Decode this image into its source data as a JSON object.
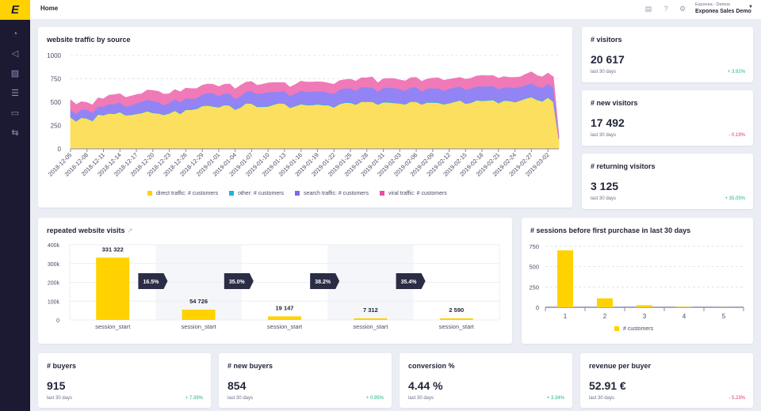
{
  "app": {
    "logo": "E",
    "breadcrumb": "Home",
    "org": "Exponea - Demos",
    "project": "Exponea Sales Demo"
  },
  "sidebar": {
    "items": [
      {
        "icon": "dashboard-icon"
      },
      {
        "icon": "megaphone-icon"
      },
      {
        "icon": "analytics-icon"
      },
      {
        "icon": "database-icon"
      },
      {
        "icon": "folder-icon"
      },
      {
        "icon": "settings-sliders-icon"
      }
    ]
  },
  "topbar": {
    "icons": [
      "chat-icon",
      "help-icon",
      "gear-icon"
    ]
  },
  "colors": {
    "yellow": "#ffd200",
    "direct": "#fcdf5f",
    "other": "#1bb6d8",
    "search": "#9284f5",
    "viral": "#f07ab7",
    "positive": "#1fb87a",
    "negative": "#e0336b"
  },
  "traffic": {
    "title": "website traffic by source",
    "chart_data": {
      "type": "area",
      "stacked": true,
      "grid": true,
      "ylim": [
        0,
        1000
      ],
      "yticks": [
        0,
        250,
        500,
        750,
        1000
      ],
      "x_start": "2018-12-05",
      "xtick_labels": [
        "2018-12-05",
        "2018-12-08",
        "2018-12-11",
        "2018-12-14",
        "2018-12-17",
        "2018-12-20",
        "2018-12-23",
        "2018-12-26",
        "2018-12-29",
        "2019-01-01",
        "2019-01-04",
        "2019-01-07",
        "2019-01-10",
        "2019-01-13",
        "2019-01-16",
        "2019-01-19",
        "2019-01-22",
        "2019-01-25",
        "2019-01-28",
        "2019-01-31",
        "2019-02-03",
        "2019-02-06",
        "2019-02-09",
        "2019-02-12",
        "2019-02-15",
        "2019-02-18",
        "2019-02-21",
        "2019-02-24",
        "2019-02-27",
        "2019-03-02"
      ],
      "series": [
        {
          "name": "direct traffic: # customers",
          "color": "#fcdf5f",
          "values": [
            340,
            295,
            335,
            325,
            300,
            370,
            360,
            380,
            375,
            395,
            360,
            365,
            375,
            385,
            405,
            385,
            380,
            365,
            380,
            410,
            375,
            420,
            420,
            430,
            460,
            465,
            455,
            445,
            470,
            465,
            420,
            445,
            490,
            485,
            450,
            452,
            455,
            475,
            490,
            485,
            440,
            460,
            480,
            470,
            470,
            478,
            470,
            468,
            445,
            480,
            495,
            495,
            475,
            505,
            505,
            505,
            475,
            500,
            498,
            492,
            487,
            477,
            507,
            505,
            477,
            497,
            497,
            495,
            478,
            490,
            505,
            520,
            485,
            495,
            520,
            515,
            518,
            525,
            490,
            518,
            515,
            500,
            520,
            540,
            555,
            525,
            510,
            550,
            505,
            110
          ]
        },
        {
          "name": "other: # customers",
          "color": "#1bb6d8",
          "values": [
            5,
            5,
            5,
            5,
            5,
            5,
            5,
            5,
            5,
            5,
            5,
            5,
            5,
            5,
            5,
            5,
            5,
            5,
            5,
            5,
            5,
            5,
            5,
            5,
            5,
            5,
            5,
            5,
            5,
            5,
            5,
            5,
            5,
            5,
            5,
            5,
            5,
            5,
            5,
            5,
            5,
            5,
            5,
            5,
            5,
            5,
            5,
            5,
            5,
            5,
            5,
            5,
            5,
            5,
            5,
            5,
            5,
            5,
            5,
            5,
            5,
            5,
            5,
            5,
            5,
            5,
            5,
            5,
            5,
            5,
            5,
            5,
            5,
            5,
            5,
            5,
            5,
            5,
            5,
            5,
            5,
            5,
            5,
            5,
            5,
            5,
            5,
            5,
            5,
            3
          ]
        },
        {
          "name": "search traffic: # customers",
          "color": "#9284f5",
          "values": [
            70,
            80,
            85,
            90,
            85,
            80,
            90,
            95,
            100,
            100,
            90,
            95,
            110,
            115,
            120,
            125,
            120,
            100,
            110,
            120,
            120,
            120,
            110,
            110,
            120,
            130,
            140,
            115,
            120,
            125,
            110,
            120,
            125,
            130,
            135,
            140,
            150,
            130,
            120,
            130,
            125,
            130,
            140,
            135,
            140,
            135,
            145,
            130,
            140,
            150,
            150,
            150,
            145,
            155,
            150,
            150,
            135,
            150,
            155,
            155,
            150,
            140,
            150,
            150,
            135,
            145,
            150,
            150,
            140,
            150,
            150,
            145,
            145,
            150,
            145,
            150,
            150,
            145,
            145,
            140,
            140,
            150,
            140,
            140,
            145,
            140,
            140,
            145,
            150,
            15
          ]
        },
        {
          "name": "viral traffic: # customers",
          "color": "#f07ab7",
          "values": [
            110,
            95,
            80,
            75,
            80,
            90,
            80,
            95,
            100,
            90,
            95,
            100,
            90,
            85,
            100,
            110,
            110,
            115,
            95,
            100,
            110,
            105,
            110,
            100,
            95,
            95,
            90,
            100,
            95,
            100,
            105,
            110,
            95,
            100,
            90,
            95,
            95,
            100,
            95,
            90,
            90,
            95,
            100,
            105,
            100,
            100,
            95,
            100,
            100,
            95,
            90,
            95,
            100,
            95,
            100,
            110,
            90,
            95,
            95,
            100,
            95,
            105,
            100,
            105,
            105,
            100,
            105,
            110,
            110,
            100,
            95,
            95,
            110,
            105,
            110,
            115,
            110,
            110,
            115,
            110,
            105,
            110,
            105,
            115,
            120,
            115,
            115,
            110,
            110,
            10
          ]
        }
      ]
    }
  },
  "kpis_right": [
    {
      "title": "# visitors",
      "value": "20 617",
      "period": "last 30 days",
      "change": "+ 3.92%",
      "trend": "positive"
    },
    {
      "title": "# new visitors",
      "value": "17 492",
      "period": "last 30 days",
      "change": "- 0.19%",
      "trend": "negative"
    },
    {
      "title": "# returning visitors",
      "value": "3 125",
      "period": "last 30 days",
      "change": "+ 35.05%",
      "trend": "positive"
    }
  ],
  "funnel": {
    "title": "repeated website visits",
    "link_icon": "external-link-icon",
    "chart_data": {
      "type": "bar",
      "ylim": [
        0,
        400000
      ],
      "ytick_labels": [
        "0",
        "100k",
        "200k",
        "300k",
        "400k"
      ],
      "categories": [
        "session_start",
        "session_start",
        "session_start",
        "session_start",
        "session_start"
      ],
      "values": [
        331322,
        54726,
        19147,
        7312,
        2590
      ],
      "value_labels": [
        "331 322",
        "54 726",
        "19 147",
        "7 312",
        "2 590"
      ],
      "conversion_labels": [
        "16.5%",
        "35.0%",
        "38.2%",
        "35.4%"
      ]
    }
  },
  "sessions": {
    "title": "# sessions before first purchase in last 30 days",
    "chart_data": {
      "type": "bar",
      "ylim": [
        0,
        750
      ],
      "yticks": [
        0,
        250,
        500,
        750
      ],
      "categories": [
        "1",
        "2",
        "3",
        "4",
        "5"
      ],
      "series": [
        {
          "name": "# customers",
          "values": [
            700,
            110,
            25,
            5,
            1
          ]
        }
      ]
    }
  },
  "kpis_bottom": [
    {
      "title": "# buyers",
      "value": "915",
      "period": "last 30 days",
      "change": "+ 7.39%",
      "trend": "positive"
    },
    {
      "title": "# new buyers",
      "value": "854",
      "period": "last 30 days",
      "change": "+ 0.95%",
      "trend": "positive"
    },
    {
      "title": "conversion %",
      "value": "4.44 %",
      "period": "last 30 days",
      "change": "+ 3.34%",
      "trend": "positive"
    },
    {
      "title": "revenue per buyer",
      "value": "52.91 €",
      "period": "last 30 days",
      "change": "- 5.23%",
      "trend": "negative"
    }
  ]
}
